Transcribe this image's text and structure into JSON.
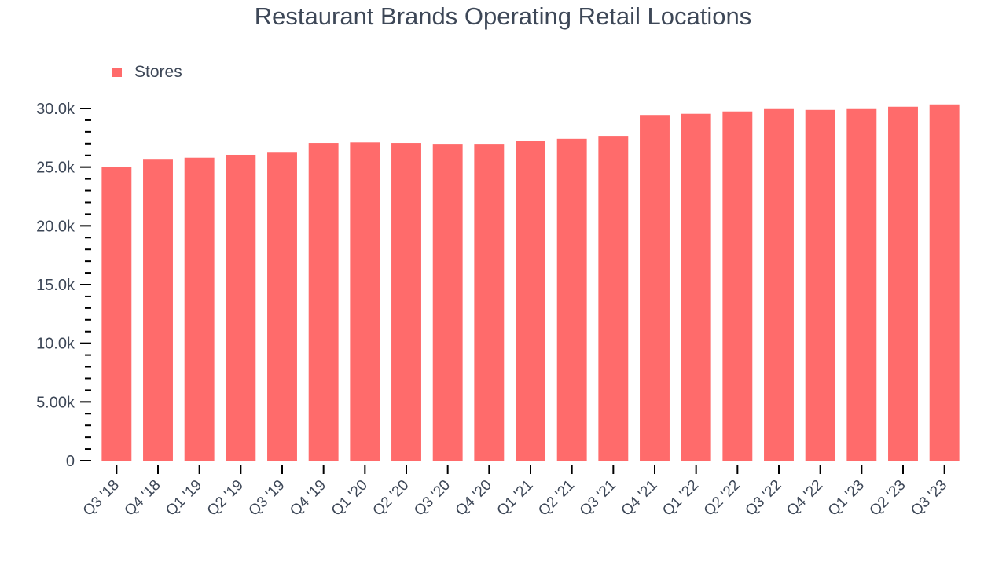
{
  "chart_data": {
    "type": "bar",
    "title": "Restaurant Brands Operating Retail Locations",
    "xlabel": "",
    "ylabel": "",
    "ylim": [
      0,
      30000
    ],
    "grid": false,
    "legend": {
      "position": "top-left",
      "entries": [
        "Stores"
      ]
    },
    "y_ticks": [
      "0",
      "5.00k",
      "10.0k",
      "15.0k",
      "20.0k",
      "25.0k",
      "30.0k"
    ],
    "categories": [
      "Q3 '18",
      "Q4 '18",
      "Q1 '19",
      "Q2 '19",
      "Q3 '19",
      "Q4 '19",
      "Q1 '20",
      "Q2 '20",
      "Q3 '20",
      "Q4 '20",
      "Q1 '21",
      "Q2 '21",
      "Q3 '21",
      "Q4 '21",
      "Q1 '22",
      "Q2 '22",
      "Q3 '22",
      "Q4 '22",
      "Q1 '23",
      "Q2 '23",
      "Q3 '23"
    ],
    "series": [
      {
        "name": "Stores",
        "color": "#ff6b6b",
        "values": [
          24980,
          25700,
          25800,
          26050,
          26300,
          27050,
          27100,
          27050,
          26980,
          26980,
          27200,
          27400,
          27650,
          29450,
          29550,
          29750,
          29950,
          29880,
          29950,
          30150,
          30350
        ]
      }
    ]
  }
}
